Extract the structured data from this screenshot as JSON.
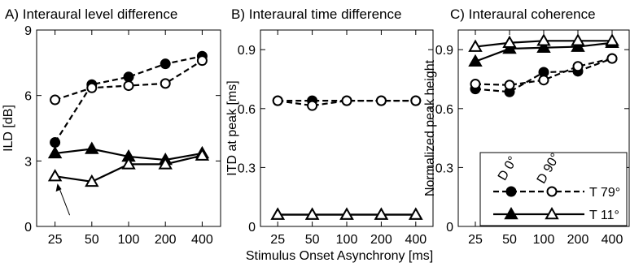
{
  "chart_data": [
    {
      "type": "line",
      "title": "A) Interaural level difference",
      "ylabel": "ILD [dB]",
      "xlabel": "",
      "categories": [
        "25",
        "50",
        "100",
        "200",
        "400"
      ],
      "ylim": [
        0,
        9
      ],
      "yticks": [
        "0",
        "3",
        "6",
        "9"
      ],
      "series": [
        {
          "legend_col": "D 0°",
          "legend_row": "T 79°",
          "values": [
            3.85,
            6.5,
            6.85,
            7.45,
            7.8
          ]
        },
        {
          "legend_col": "D 90°",
          "legend_row": "T 79°",
          "values": [
            5.8,
            6.35,
            6.45,
            6.55,
            7.6
          ]
        },
        {
          "legend_col": "D 0°",
          "legend_row": "T 11°",
          "values": [
            3.35,
            3.55,
            3.2,
            3.05,
            3.35
          ]
        },
        {
          "legend_col": "D 90°",
          "legend_row": "T 11°",
          "values": [
            2.3,
            2.05,
            2.85,
            2.85,
            3.25
          ]
        }
      ]
    },
    {
      "type": "line",
      "title": "B) Interaural time difference",
      "ylabel": "ITD at peak [ms]",
      "xlabel": "Stimulus Onset Asynchrony [ms]",
      "categories": [
        "25",
        "50",
        "100",
        "200",
        "400"
      ],
      "ylim": [
        0,
        1.0
      ],
      "yticks": [
        "0",
        "0.3",
        "0.6",
        "0.9"
      ],
      "series": [
        {
          "legend_col": "D 0°",
          "legend_row": "T 79°",
          "values": [
            0.64,
            0.64,
            0.64,
            0.64,
            0.64
          ]
        },
        {
          "legend_col": "D 90°",
          "legend_row": "T 79°",
          "values": [
            0.64,
            0.615,
            0.64,
            0.64,
            0.64
          ]
        },
        {
          "legend_col": "D 0°",
          "legend_row": "T 11°",
          "values": [
            0.06,
            0.06,
            0.06,
            0.06,
            0.06
          ]
        },
        {
          "legend_col": "D 90°",
          "legend_row": "T 11°",
          "values": [
            0.06,
            0.06,
            0.06,
            0.06,
            0.06
          ]
        }
      ]
    },
    {
      "type": "line",
      "title": "C) Interaural coherence",
      "ylabel": "Normalized peak height",
      "xlabel": "",
      "categories": [
        "25",
        "50",
        "100",
        "200",
        "400"
      ],
      "ylim": [
        0,
        1.0
      ],
      "yticks": [
        "0",
        "0.3",
        "0.6",
        "0.9"
      ],
      "legend": {
        "columns": [
          "D 0°",
          "D 90°"
        ],
        "rows": [
          "T 79°",
          "T 11°"
        ]
      },
      "series": [
        {
          "legend_col": "D 0°",
          "legend_row": "T 79°",
          "values": [
            0.7,
            0.685,
            0.785,
            0.79,
            0.855
          ]
        },
        {
          "legend_col": "D 90°",
          "legend_row": "T 79°",
          "values": [
            0.725,
            0.72,
            0.745,
            0.815,
            0.855
          ]
        },
        {
          "legend_col": "D 0°",
          "legend_row": "T 11°",
          "values": [
            0.84,
            0.905,
            0.91,
            0.915,
            0.935
          ]
        },
        {
          "legend_col": "D 90°",
          "legend_row": "T 11°",
          "values": [
            0.915,
            0.935,
            0.945,
            0.945,
            0.945
          ]
        }
      ]
    }
  ]
}
